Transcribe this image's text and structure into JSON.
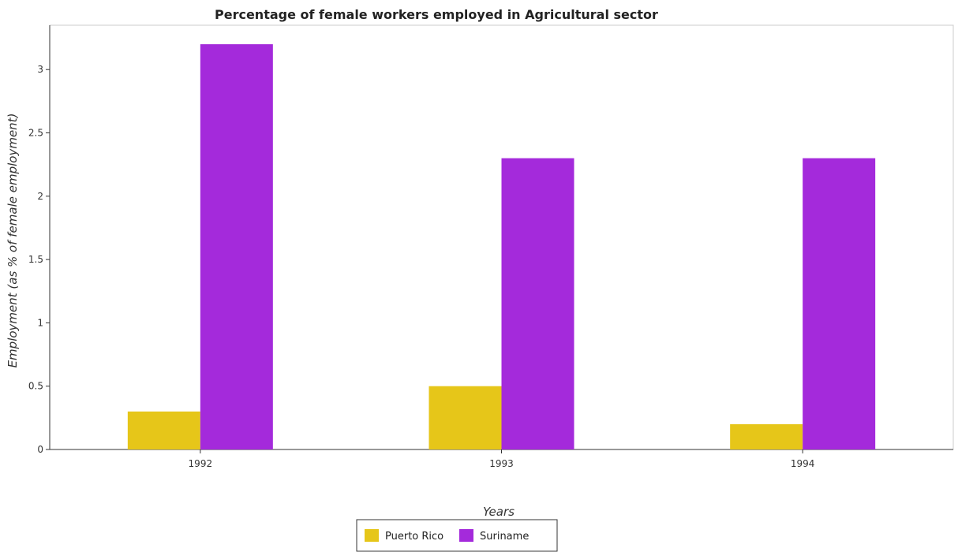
{
  "chart_data": {
    "type": "bar",
    "title": "Percentage of female workers employed in Agricultural sector",
    "xlabel": "Years",
    "ylabel": "Employment (as % of female employment)",
    "categories": [
      "1992",
      "1993",
      "1994"
    ],
    "series": [
      {
        "name": "Puerto Rico",
        "values": [
          0.3,
          0.5,
          0.2
        ],
        "color": "#e6c619"
      },
      {
        "name": "Suriname",
        "values": [
          3.2,
          2.3,
          2.3
        ],
        "color": "#a42adb"
      }
    ],
    "ylim": [
      0,
      3.35
    ],
    "yticks": [
      0,
      0.5,
      1,
      1.5,
      2,
      2.5,
      3
    ],
    "ytick_labels": [
      "0",
      "0.5",
      "1",
      "1.5",
      "2",
      "2.5",
      "3"
    ],
    "grid": false,
    "legend_position": "bottom-center"
  }
}
